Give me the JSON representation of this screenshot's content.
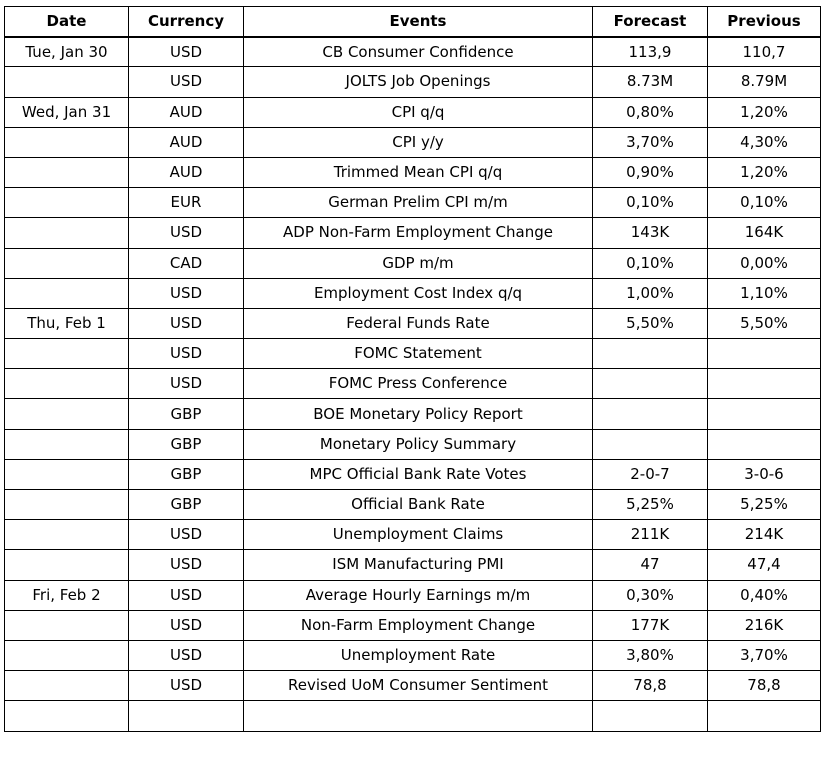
{
  "table": {
    "headers": {
      "date": "Date",
      "currency": "Currency",
      "events": "Events",
      "forecast": "Forecast",
      "previous": "Previous"
    },
    "rows": [
      {
        "date": "Tue, Jan 30",
        "currency": "USD",
        "event": "CB Consumer Confidence",
        "forecast": "113,9",
        "previous": "110,7"
      },
      {
        "date": "",
        "currency": "USD",
        "event": "JOLTS Job Openings",
        "forecast": "8.73M",
        "previous": "8.79M"
      },
      {
        "date": "Wed, Jan 31",
        "currency": "AUD",
        "event": "CPI q/q",
        "forecast": "0,80%",
        "previous": "1,20%"
      },
      {
        "date": "",
        "currency": "AUD",
        "event": "CPI y/y",
        "forecast": "3,70%",
        "previous": "4,30%"
      },
      {
        "date": "",
        "currency": "AUD",
        "event": "Trimmed Mean CPI q/q",
        "forecast": "0,90%",
        "previous": "1,20%"
      },
      {
        "date": "",
        "currency": "EUR",
        "event": "German Prelim CPI m/m",
        "forecast": "0,10%",
        "previous": "0,10%"
      },
      {
        "date": "",
        "currency": "USD",
        "event": "ADP Non-Farm Employment Change",
        "forecast": "143K",
        "previous": "164K"
      },
      {
        "date": "",
        "currency": "CAD",
        "event": "GDP m/m",
        "forecast": "0,10%",
        "previous": "0,00%"
      },
      {
        "date": "",
        "currency": "USD",
        "event": "Employment Cost Index q/q",
        "forecast": "1,00%",
        "previous": "1,10%"
      },
      {
        "date": "Thu, Feb 1",
        "currency": "USD",
        "event": "Federal Funds Rate",
        "forecast": "5,50%",
        "previous": "5,50%"
      },
      {
        "date": "",
        "currency": "USD",
        "event": "FOMC Statement",
        "forecast": "",
        "previous": ""
      },
      {
        "date": "",
        "currency": "USD",
        "event": "FOMC Press Conference",
        "forecast": "",
        "previous": ""
      },
      {
        "date": "",
        "currency": "GBP",
        "event": "BOE Monetary Policy Report",
        "forecast": "",
        "previous": ""
      },
      {
        "date": "",
        "currency": "GBP",
        "event": "Monetary Policy Summary",
        "forecast": "",
        "previous": ""
      },
      {
        "date": "",
        "currency": "GBP",
        "event": "MPC Official Bank Rate Votes",
        "forecast": "2-0-7",
        "previous": "3-0-6"
      },
      {
        "date": "",
        "currency": "GBP",
        "event": "Official Bank Rate",
        "forecast": "5,25%",
        "previous": "5,25%"
      },
      {
        "date": "",
        "currency": "USD",
        "event": "Unemployment Claims",
        "forecast": "211K",
        "previous": "214K"
      },
      {
        "date": "",
        "currency": "USD",
        "event": "ISM Manufacturing PMI",
        "forecast": "47",
        "previous": "47,4"
      },
      {
        "date": "Fri, Feb 2",
        "currency": "USD",
        "event": "Average Hourly Earnings m/m",
        "forecast": "0,30%",
        "previous": "0,40%"
      },
      {
        "date": "",
        "currency": "USD",
        "event": "Non-Farm Employment Change",
        "forecast": "177K",
        "previous": "216K"
      },
      {
        "date": "",
        "currency": "USD",
        "event": "Unemployment Rate",
        "forecast": "3,80%",
        "previous": "3,70%"
      },
      {
        "date": "",
        "currency": "USD",
        "event": "Revised UoM Consumer Sentiment",
        "forecast": "78,8",
        "previous": "78,8"
      },
      {
        "date": "",
        "currency": "",
        "event": "",
        "forecast": "",
        "previous": ""
      }
    ]
  }
}
